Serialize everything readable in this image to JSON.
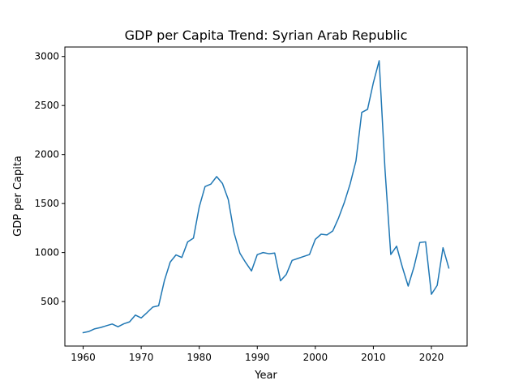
{
  "chart_data": {
    "type": "line",
    "title": "GDP per Capita Trend: Syrian Arab Republic",
    "xlabel": "Year",
    "ylabel": "GDP per Capita",
    "xlim": [
      1956.85,
      2026.15
    ],
    "ylim": [
      46,
      3097
    ],
    "xticks": [
      1960,
      1970,
      1980,
      1990,
      2000,
      2010,
      2020
    ],
    "yticks": [
      500,
      1000,
      1500,
      2000,
      2500,
      3000
    ],
    "grid": false,
    "legend": "none",
    "series": [
      {
        "color": "#1f77b4",
        "x": [
          1960,
          1961,
          1962,
          1963,
          1964,
          1965,
          1966,
          1967,
          1968,
          1969,
          1970,
          1971,
          1972,
          1973,
          1974,
          1975,
          1976,
          1977,
          1978,
          1979,
          1980,
          1981,
          1982,
          1983,
          1984,
          1985,
          1986,
          1987,
          1988,
          1989,
          1990,
          1991,
          1992,
          1993,
          1994,
          1995,
          1996,
          1997,
          1998,
          1999,
          2000,
          2001,
          2002,
          2003,
          2004,
          2005,
          2006,
          2007,
          2008,
          2009,
          2010,
          2011,
          2012,
          2013,
          2014,
          2015,
          2016,
          2017,
          2018,
          2019,
          2020,
          2021,
          2022,
          2023
        ],
        "values": [
          183,
          195,
          222,
          235,
          253,
          271,
          243,
          273,
          293,
          362,
          333,
          387,
          444,
          457,
          714,
          903,
          976,
          950,
          1108,
          1147,
          1465,
          1673,
          1698,
          1775,
          1705,
          1542,
          1201,
          994,
          898,
          812,
          979,
          1000,
          988,
          995,
          712,
          777,
          920,
          940,
          960,
          980,
          1135,
          1187,
          1180,
          1220,
          1352,
          1511,
          1700,
          1935,
          2430,
          2461,
          2733,
          2957,
          1853,
          980,
          1065,
          850,
          658,
          853,
          1102,
          1109,
          574,
          665,
          1049,
          842
        ]
      }
    ]
  }
}
